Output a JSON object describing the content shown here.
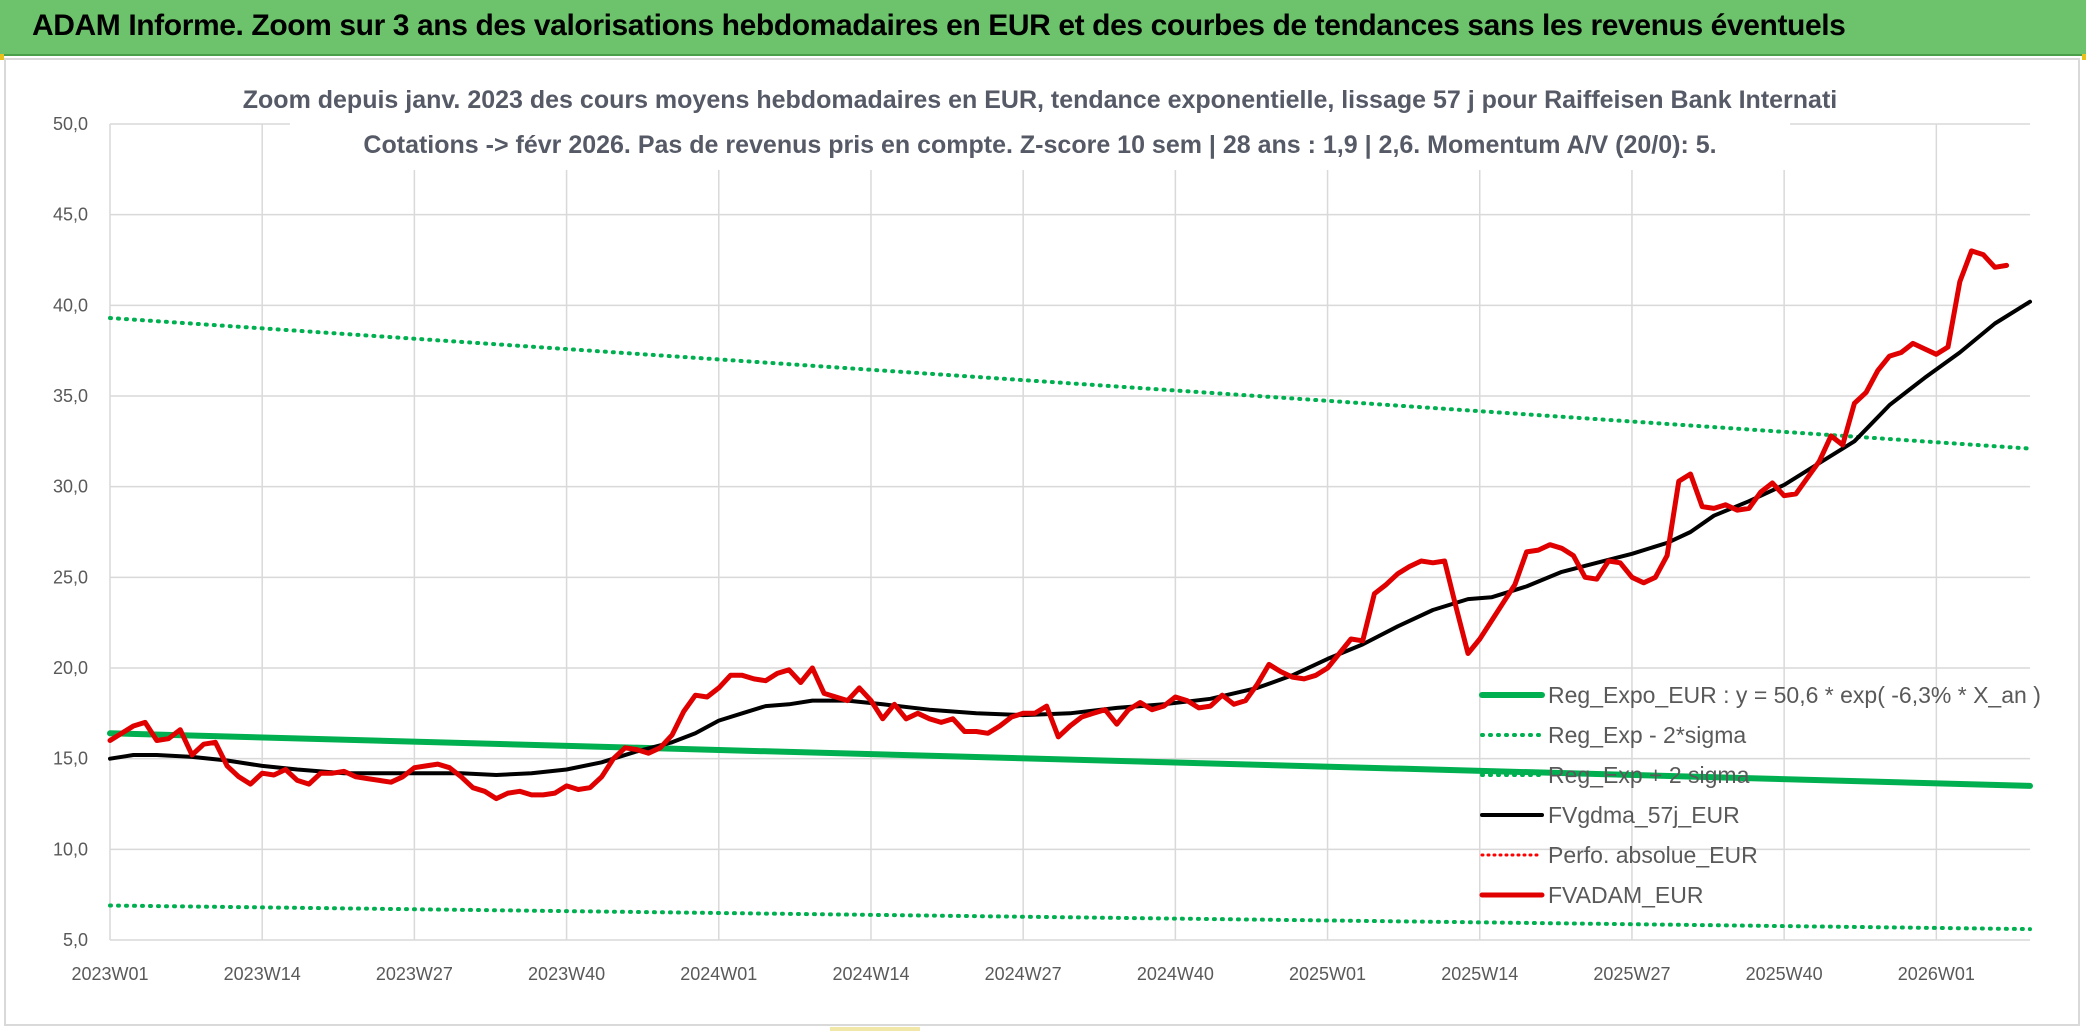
{
  "header": {
    "title": "ADAM Informe. Zoom sur 3 ans des valorisations hebdomadaires en EUR et des courbes de tendances sans les revenus éventuels"
  },
  "colors": {
    "banner": "#6cc36c",
    "reg_expo": "#00b050",
    "sigma": "#00b050",
    "fvgdma": "#000000",
    "perfo": "#ff0000",
    "fvadam": "#e00000"
  },
  "chart_data": {
    "type": "line",
    "title": [
      "Zoom depuis janv. 2023 des cours moyens hebdomadaires en EUR, tendance exponentielle, lissage 57 j pour Raiffeisen Bank Internati",
      "Cotations -> févr 2026. Pas de revenus pris en compte. Z-score 10 sem | 28 ans : 1,9 | 2,6. Momentum A/V (20/0): 5."
    ],
    "xlabel": "",
    "ylabel": "",
    "ylim": [
      5,
      50
    ],
    "yticks": [
      "5,0",
      "10,0",
      "15,0",
      "20,0",
      "25,0",
      "30,0",
      "35,0",
      "40,0",
      "45,0",
      "50,0"
    ],
    "x_range_weeks": [
      0,
      164
    ],
    "xticks": [
      {
        "label": "2023W01",
        "week": 0
      },
      {
        "label": "2023W14",
        "week": 13
      },
      {
        "label": "2023W27",
        "week": 26
      },
      {
        "label": "2023W40",
        "week": 39
      },
      {
        "label": "2024W01",
        "week": 52
      },
      {
        "label": "2024W14",
        "week": 65
      },
      {
        "label": "2024W27",
        "week": 78
      },
      {
        "label": "2024W40",
        "week": 91
      },
      {
        "label": "2025W01",
        "week": 104
      },
      {
        "label": "2025W14",
        "week": 117
      },
      {
        "label": "2025W27",
        "week": 130
      },
      {
        "label": "2025W40",
        "week": 143
      },
      {
        "label": "2026W01",
        "week": 156
      }
    ],
    "legend": [
      "Reg_Expo_EUR : y = 50,6 * exp( -6,3% *  X_an )",
      "Reg_Exp - 2*sigma",
      "Reg_Exp + 2 sigma",
      "FVgdma_57j_EUR",
      "Perfo. absolue_EUR",
      "FVADAM_EUR"
    ],
    "legend_position": "bottom-right",
    "grid": true,
    "series": [
      {
        "name": "Reg_Expo_EUR",
        "style": "solid-thick",
        "points": [
          [
            0,
            16.4
          ],
          [
            164,
            13.5
          ]
        ]
      },
      {
        "name": "Reg_Exp - 2*sigma",
        "style": "dotted",
        "points": [
          [
            0,
            6.9
          ],
          [
            164,
            5.6
          ]
        ]
      },
      {
        "name": "Reg_Exp + 2 sigma",
        "style": "dotted",
        "points": [
          [
            0,
            39.3
          ],
          [
            164,
            32.1
          ]
        ]
      },
      {
        "name": "FVgdma_57j_EUR",
        "style": "solid",
        "points": [
          [
            0,
            15.0
          ],
          [
            2,
            15.2
          ],
          [
            4,
            15.2
          ],
          [
            7,
            15.1
          ],
          [
            10,
            14.9
          ],
          [
            13,
            14.6
          ],
          [
            16,
            14.4
          ],
          [
            20,
            14.2
          ],
          [
            25,
            14.2
          ],
          [
            30,
            14.2
          ],
          [
            33,
            14.1
          ],
          [
            36,
            14.2
          ],
          [
            39,
            14.4
          ],
          [
            42,
            14.8
          ],
          [
            45,
            15.4
          ],
          [
            48,
            15.9
          ],
          [
            50,
            16.4
          ],
          [
            52,
            17.1
          ],
          [
            54,
            17.5
          ],
          [
            56,
            17.9
          ],
          [
            58,
            18.0
          ],
          [
            60,
            18.2
          ],
          [
            63,
            18.2
          ],
          [
            66,
            18.0
          ],
          [
            70,
            17.7
          ],
          [
            74,
            17.5
          ],
          [
            78,
            17.4
          ],
          [
            82,
            17.5
          ],
          [
            86,
            17.8
          ],
          [
            90,
            18.0
          ],
          [
            94,
            18.3
          ],
          [
            98,
            18.9
          ],
          [
            101,
            19.6
          ],
          [
            104,
            20.5
          ],
          [
            107,
            21.3
          ],
          [
            110,
            22.3
          ],
          [
            113,
            23.2
          ],
          [
            116,
            23.8
          ],
          [
            118,
            23.9
          ],
          [
            121,
            24.5
          ],
          [
            124,
            25.3
          ],
          [
            127,
            25.8
          ],
          [
            130,
            26.3
          ],
          [
            133,
            26.9
          ],
          [
            135,
            27.5
          ],
          [
            137,
            28.4
          ],
          [
            140,
            29.2
          ],
          [
            143,
            30.1
          ],
          [
            146,
            31.3
          ],
          [
            149,
            32.5
          ],
          [
            152,
            34.5
          ],
          [
            155,
            36.0
          ],
          [
            158,
            37.4
          ],
          [
            161,
            39.0
          ],
          [
            164,
            40.2
          ]
        ]
      },
      {
        "name": "FVADAM_EUR",
        "style": "solid-thick",
        "points": [
          [
            0,
            16.0
          ],
          [
            1,
            16.4
          ],
          [
            2,
            16.8
          ],
          [
            3,
            17.0
          ],
          [
            4,
            16.0
          ],
          [
            5,
            16.1
          ],
          [
            6,
            16.6
          ],
          [
            7,
            15.2
          ],
          [
            8,
            15.8
          ],
          [
            9,
            15.9
          ],
          [
            10,
            14.6
          ],
          [
            11,
            14.0
          ],
          [
            12,
            13.6
          ],
          [
            13,
            14.2
          ],
          [
            14,
            14.1
          ],
          [
            15,
            14.4
          ],
          [
            16,
            13.8
          ],
          [
            17,
            13.6
          ],
          [
            18,
            14.2
          ],
          [
            19,
            14.2
          ],
          [
            20,
            14.3
          ],
          [
            21,
            14.0
          ],
          [
            22,
            13.9
          ],
          [
            23,
            13.8
          ],
          [
            24,
            13.7
          ],
          [
            25,
            14.0
          ],
          [
            26,
            14.5
          ],
          [
            27,
            14.6
          ],
          [
            28,
            14.7
          ],
          [
            29,
            14.5
          ],
          [
            30,
            14.0
          ],
          [
            31,
            13.4
          ],
          [
            32,
            13.2
          ],
          [
            33,
            12.8
          ],
          [
            34,
            13.1
          ],
          [
            35,
            13.2
          ],
          [
            36,
            13.0
          ],
          [
            37,
            13.0
          ],
          [
            38,
            13.1
          ],
          [
            39,
            13.5
          ],
          [
            40,
            13.3
          ],
          [
            41,
            13.4
          ],
          [
            42,
            14.0
          ],
          [
            43,
            15.0
          ],
          [
            44,
            15.6
          ],
          [
            45,
            15.5
          ],
          [
            46,
            15.3
          ],
          [
            47,
            15.6
          ],
          [
            48,
            16.3
          ],
          [
            49,
            17.6
          ],
          [
            50,
            18.5
          ],
          [
            51,
            18.4
          ],
          [
            52,
            18.9
          ],
          [
            53,
            19.6
          ],
          [
            54,
            19.6
          ],
          [
            55,
            19.4
          ],
          [
            56,
            19.3
          ],
          [
            57,
            19.7
          ],
          [
            58,
            19.9
          ],
          [
            59,
            19.2
          ],
          [
            60,
            20.0
          ],
          [
            61,
            18.6
          ],
          [
            62,
            18.4
          ],
          [
            63,
            18.2
          ],
          [
            64,
            18.9
          ],
          [
            65,
            18.2
          ],
          [
            66,
            17.2
          ],
          [
            67,
            18.0
          ],
          [
            68,
            17.2
          ],
          [
            69,
            17.5
          ],
          [
            70,
            17.2
          ],
          [
            71,
            17.0
          ],
          [
            72,
            17.2
          ],
          [
            73,
            16.5
          ],
          [
            74,
            16.5
          ],
          [
            75,
            16.4
          ],
          [
            76,
            16.8
          ],
          [
            77,
            17.3
          ],
          [
            78,
            17.5
          ],
          [
            79,
            17.5
          ],
          [
            80,
            17.9
          ],
          [
            81,
            16.2
          ],
          [
            82,
            16.8
          ],
          [
            83,
            17.3
          ],
          [
            84,
            17.5
          ],
          [
            85,
            17.7
          ],
          [
            86,
            16.9
          ],
          [
            87,
            17.7
          ],
          [
            88,
            18.1
          ],
          [
            89,
            17.7
          ],
          [
            90,
            17.9
          ],
          [
            91,
            18.4
          ],
          [
            92,
            18.2
          ],
          [
            93,
            17.8
          ],
          [
            94,
            17.9
          ],
          [
            95,
            18.5
          ],
          [
            96,
            18.0
          ],
          [
            97,
            18.2
          ],
          [
            98,
            19.1
          ],
          [
            99,
            20.2
          ],
          [
            100,
            19.8
          ],
          [
            101,
            19.5
          ],
          [
            102,
            19.4
          ],
          [
            103,
            19.6
          ],
          [
            104,
            20.0
          ],
          [
            105,
            20.8
          ],
          [
            106,
            21.6
          ],
          [
            107,
            21.5
          ],
          [
            108,
            24.1
          ],
          [
            109,
            24.6
          ],
          [
            110,
            25.2
          ],
          [
            111,
            25.6
          ],
          [
            112,
            25.9
          ],
          [
            113,
            25.8
          ],
          [
            114,
            25.9
          ],
          [
            115,
            23.3
          ],
          [
            116,
            20.8
          ],
          [
            117,
            21.6
          ],
          [
            118,
            22.6
          ],
          [
            119,
            23.6
          ],
          [
            120,
            24.6
          ],
          [
            121,
            26.4
          ],
          [
            122,
            26.5
          ],
          [
            123,
            26.8
          ],
          [
            124,
            26.6
          ],
          [
            125,
            26.2
          ],
          [
            126,
            25.0
          ],
          [
            127,
            24.9
          ],
          [
            128,
            25.9
          ],
          [
            129,
            25.8
          ],
          [
            130,
            25.0
          ],
          [
            131,
            24.7
          ],
          [
            132,
            25.0
          ],
          [
            133,
            26.2
          ],
          [
            134,
            30.3
          ],
          [
            135,
            30.7
          ],
          [
            136,
            28.9
          ],
          [
            137,
            28.8
          ],
          [
            138,
            29.0
          ],
          [
            139,
            28.7
          ],
          [
            140,
            28.8
          ],
          [
            141,
            29.7
          ],
          [
            142,
            30.2
          ],
          [
            143,
            29.5
          ],
          [
            144,
            29.6
          ],
          [
            145,
            30.5
          ],
          [
            146,
            31.4
          ],
          [
            147,
            32.8
          ],
          [
            148,
            32.3
          ],
          [
            149,
            34.6
          ],
          [
            150,
            35.2
          ],
          [
            151,
            36.4
          ],
          [
            152,
            37.2
          ],
          [
            153,
            37.4
          ],
          [
            154,
            37.9
          ],
          [
            155,
            37.6
          ],
          [
            156,
            37.3
          ],
          [
            157,
            37.7
          ],
          [
            158,
            41.3
          ],
          [
            159,
            43.0
          ],
          [
            160,
            42.8
          ],
          [
            161,
            42.1
          ],
          [
            162,
            42.2
          ]
        ]
      }
    ]
  }
}
